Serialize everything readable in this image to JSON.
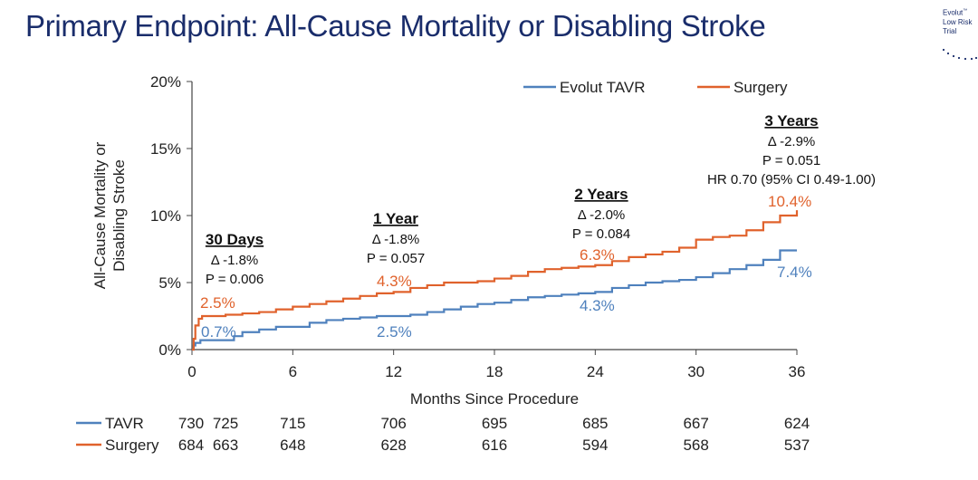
{
  "header": {
    "title": "Primary Endpoint: All-Cause Mortality or Disabling Stroke",
    "brand_line1": "Evolut",
    "brand_tm": "™",
    "brand_line2": "Low Risk",
    "brand_line3": "Trial"
  },
  "chart_data": {
    "type": "line",
    "xlabel": "Months Since Procedure",
    "ylabel": "All-Cause Mortality or\nDisabling Stroke",
    "x_ticks": [
      "0",
      "6",
      "12",
      "18",
      "24",
      "30",
      "36"
    ],
    "y_ticks": [
      "0%",
      "5%",
      "10%",
      "15%",
      "20%"
    ],
    "xlim": [
      0,
      36
    ],
    "ylim": [
      0,
      20
    ],
    "legend_position": "top-right",
    "series": [
      {
        "name": "Evolut TAVR",
        "color": "#4f81bd",
        "points": [
          [
            0,
            0
          ],
          [
            0.1,
            0.3
          ],
          [
            0.2,
            0.5
          ],
          [
            0.5,
            0.7
          ],
          [
            1,
            0.7
          ],
          [
            2,
            0.7
          ],
          [
            2.5,
            1.0
          ],
          [
            3,
            1.3
          ],
          [
            4,
            1.5
          ],
          [
            5,
            1.7
          ],
          [
            6,
            1.7
          ],
          [
            7,
            2.0
          ],
          [
            8,
            2.2
          ],
          [
            9,
            2.3
          ],
          [
            10,
            2.4
          ],
          [
            11,
            2.5
          ],
          [
            12,
            2.5
          ],
          [
            13,
            2.6
          ],
          [
            14,
            2.8
          ],
          [
            15,
            3.0
          ],
          [
            16,
            3.2
          ],
          [
            17,
            3.4
          ],
          [
            18,
            3.5
          ],
          [
            19,
            3.7
          ],
          [
            20,
            3.9
          ],
          [
            21,
            4.0
          ],
          [
            22,
            4.1
          ],
          [
            23,
            4.2
          ],
          [
            24,
            4.3
          ],
          [
            25,
            4.6
          ],
          [
            26,
            4.8
          ],
          [
            27,
            5.0
          ],
          [
            28,
            5.1
          ],
          [
            29,
            5.2
          ],
          [
            30,
            5.4
          ],
          [
            31,
            5.7
          ],
          [
            32,
            6.0
          ],
          [
            33,
            6.3
          ],
          [
            34,
            6.7
          ],
          [
            35,
            7.4
          ],
          [
            36,
            7.4
          ]
        ]
      },
      {
        "name": "Surgery",
        "color": "#e0622c",
        "points": [
          [
            0,
            0
          ],
          [
            0.1,
            0.8
          ],
          [
            0.2,
            1.8
          ],
          [
            0.4,
            2.3
          ],
          [
            0.6,
            2.5
          ],
          [
            1,
            2.5
          ],
          [
            2,
            2.6
          ],
          [
            3,
            2.7
          ],
          [
            4,
            2.8
          ],
          [
            5,
            3.0
          ],
          [
            6,
            3.2
          ],
          [
            7,
            3.4
          ],
          [
            8,
            3.6
          ],
          [
            9,
            3.8
          ],
          [
            10,
            4.0
          ],
          [
            11,
            4.2
          ],
          [
            12,
            4.3
          ],
          [
            13,
            4.6
          ],
          [
            14,
            4.8
          ],
          [
            15,
            5.0
          ],
          [
            16,
            5.0
          ],
          [
            17,
            5.1
          ],
          [
            18,
            5.3
          ],
          [
            19,
            5.5
          ],
          [
            20,
            5.8
          ],
          [
            21,
            6.0
          ],
          [
            22,
            6.1
          ],
          [
            23,
            6.2
          ],
          [
            24,
            6.3
          ],
          [
            25,
            6.6
          ],
          [
            26,
            6.9
          ],
          [
            27,
            7.1
          ],
          [
            28,
            7.3
          ],
          [
            29,
            7.6
          ],
          [
            30,
            8.2
          ],
          [
            31,
            8.4
          ],
          [
            32,
            8.5
          ],
          [
            33,
            8.9
          ],
          [
            34,
            9.5
          ],
          [
            35,
            10.0
          ],
          [
            36,
            10.4
          ]
        ]
      }
    ],
    "end_labels": [
      {
        "text": "0.7%",
        "x": 0.5,
        "y": 0.7,
        "series": 0
      },
      {
        "text": "2.5%",
        "x": 0.5,
        "y": 2.5,
        "series": 1
      },
      {
        "text": "2.5%",
        "x": 12,
        "y": 2.5,
        "series": 0
      },
      {
        "text": "4.3%",
        "x": 12,
        "y": 4.3,
        "series": 1
      },
      {
        "text": "4.3%",
        "x": 24,
        "y": 4.3,
        "series": 0
      },
      {
        "text": "6.3%",
        "x": 24,
        "y": 6.3,
        "series": 1
      },
      {
        "text": "7.4%",
        "x": 36,
        "y": 7.4,
        "series": 0
      },
      {
        "text": "10.4%",
        "x": 36,
        "y": 10.4,
        "series": 1
      }
    ],
    "annotations": [
      {
        "heading": "30 Days",
        "lines": [
          "Δ -1.8%",
          "P = 0.006"
        ]
      },
      {
        "heading": "1 Year",
        "lines": [
          "Δ -1.8%",
          "P = 0.057"
        ]
      },
      {
        "heading": "2 Years",
        "lines": [
          "Δ -2.0%",
          "P = 0.084"
        ]
      },
      {
        "heading": "3 Years",
        "lines": [
          "Δ -2.9%",
          "P = 0.051",
          "HR 0.70 (95% CI 0.49-1.00)"
        ]
      }
    ],
    "at_risk": {
      "rows": [
        {
          "label": "TAVR",
          "color": "#4f81bd",
          "values": [
            "730",
            "725",
            "715",
            "706",
            "695",
            "685",
            "667",
            "624"
          ]
        },
        {
          "label": "Surgery",
          "color": "#e0622c",
          "values": [
            "684",
            "663",
            "648",
            "628",
            "616",
            "594",
            "568",
            "537"
          ]
        }
      ],
      "months": [
        0,
        1,
        6,
        12,
        18,
        24,
        30,
        36
      ]
    }
  }
}
